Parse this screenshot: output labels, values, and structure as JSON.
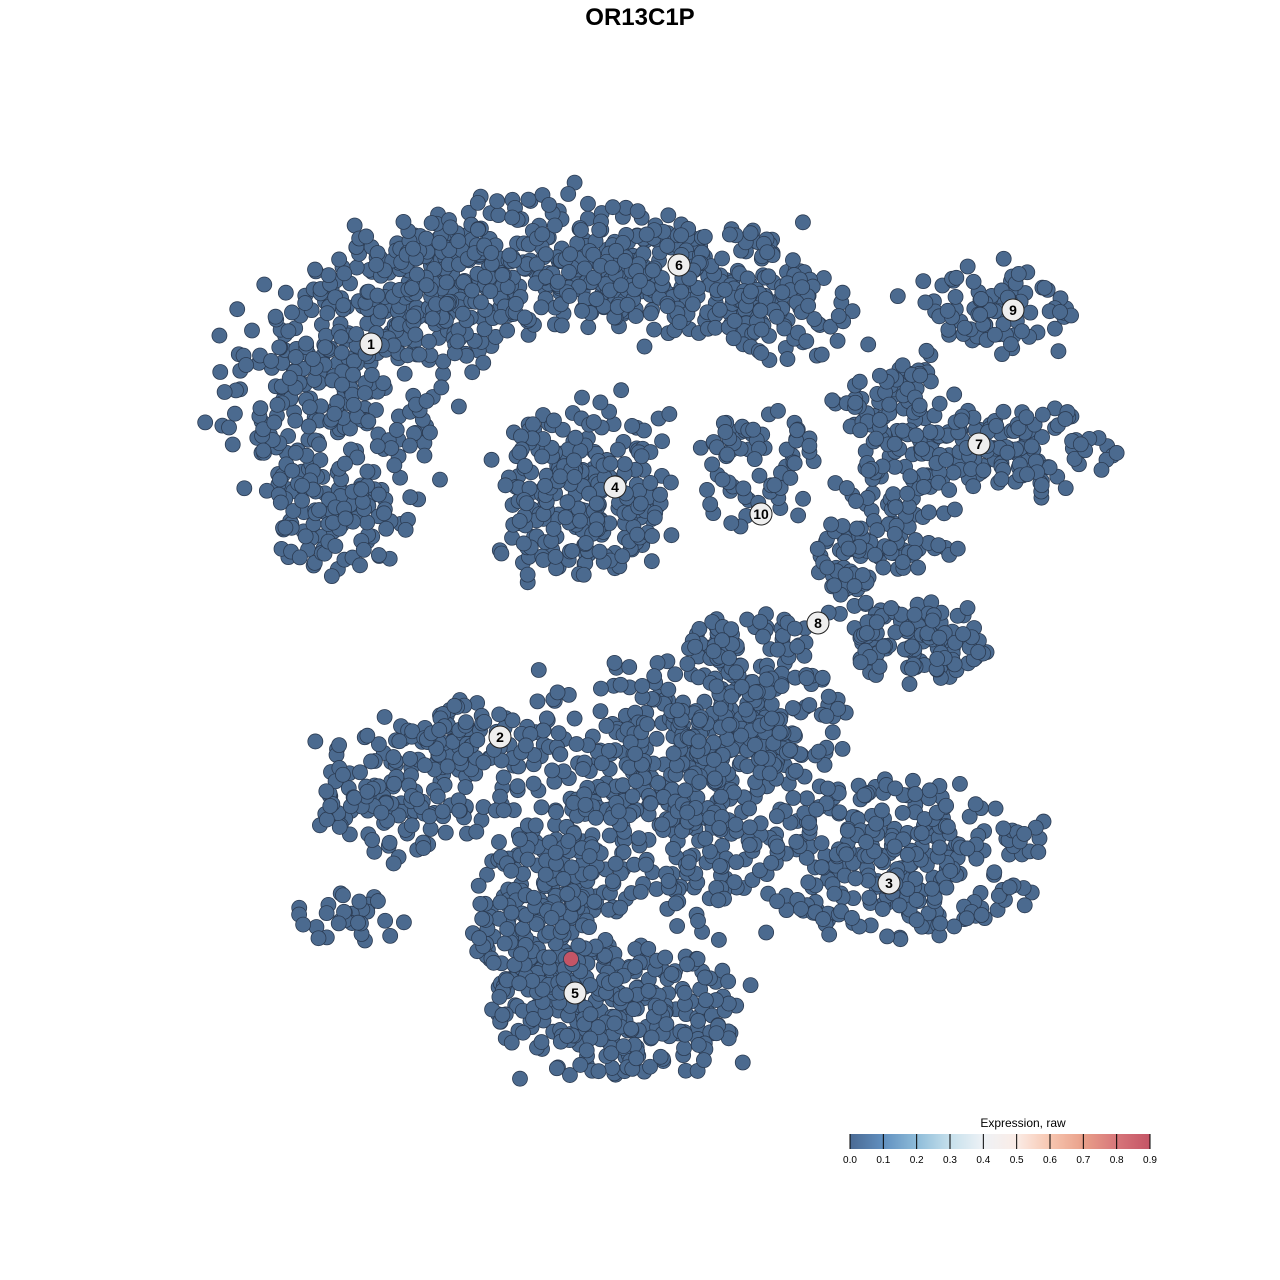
{
  "chart_data": {
    "type": "scatter",
    "title": "OR13C1P",
    "xlabel": "",
    "ylabel": "",
    "grid": false,
    "axes_visible": false,
    "point_color_default": "#4b6a8f",
    "point_stroke": "#2b3b52",
    "clusters": [
      {
        "label": "1",
        "label_pos": [
          -26.9,
          29.6
        ],
        "blobs": [
          [
            -31,
            24,
            10,
            10,
            260
          ],
          [
            -22,
            34,
            9,
            6,
            200
          ],
          [
            -30,
            12,
            6,
            5,
            90
          ]
        ]
      },
      {
        "label": "2",
        "label_pos": [
          -14.0,
          -9.7
        ],
        "blobs": [
          [
            -24,
            -15,
            7,
            6,
            150
          ],
          [
            -18,
            -9,
            5,
            3,
            60
          ],
          [
            -29,
            -28,
            5,
            2.5,
            30
          ]
        ]
      },
      {
        "label": "3",
        "label_pos": [
          24.9,
          -24.3
        ],
        "blobs": [
          [
            26,
            -22,
            12,
            7,
            300
          ]
        ]
      },
      {
        "label": "4",
        "label_pos": [
          -2.5,
          15.3
        ],
        "blobs": [
          [
            -6,
            15,
            7.5,
            8,
            260
          ]
        ]
      },
      {
        "label": "5",
        "label_pos": [
          -6.5,
          -35.3
        ],
        "blobs": [
          [
            -2,
            -37,
            11,
            6,
            300
          ],
          [
            -10,
            -28,
            6,
            7,
            160
          ]
        ]
      },
      {
        "label": "6",
        "label_pos": [
          3.9,
          37.5
        ],
        "blobs": [
          [
            -10,
            38,
            13,
            6,
            300
          ],
          [
            6,
            36,
            10,
            5,
            200
          ],
          [
            15,
            32,
            5,
            4,
            70
          ]
        ]
      },
      {
        "label": "7",
        "label_pos": [
          33.9,
          19.6
        ],
        "blobs": [
          [
            36,
            19,
            11,
            4,
            160
          ],
          [
            25,
            24,
            5,
            4,
            70
          ]
        ]
      },
      {
        "label": "8",
        "label_pos": [
          17.8,
          1.7
        ],
        "blobs": [
          [
            26,
            12,
            6,
            5,
            80
          ],
          [
            21,
            7,
            3,
            4,
            50
          ],
          [
            28,
            0,
            6,
            3.5,
            110
          ],
          [
            11,
            0,
            6,
            2.5,
            60
          ]
        ]
      },
      {
        "label": "9",
        "label_pos": [
          37.3,
          33.0
        ],
        "blobs": [
          [
            35,
            33,
            7,
            4,
            90
          ]
        ]
      },
      {
        "label": "10",
        "label_pos": [
          12.1,
          12.6
        ],
        "blobs": [
          [
            12,
            17,
            6,
            5,
            70
          ]
        ]
      },
      {
        "label": "",
        "label_pos": null,
        "blobs": [
          [
            1,
            -15,
            14,
            11,
            500
          ],
          [
            12,
            -8,
            8,
            5,
            160
          ]
        ]
      }
    ],
    "highlighted_points": [
      {
        "x": -6.9,
        "y": -31.9,
        "value": 0.9
      }
    ],
    "default_value": 0.0,
    "colorbar": {
      "title": "Expression, raw",
      "range": [
        0.0,
        0.9
      ],
      "ticks": [
        "0.0",
        "0.1",
        "0.2",
        "0.3",
        "0.4",
        "0.5",
        "0.6",
        "0.7",
        "0.8",
        "0.9"
      ],
      "colors": [
        "#4a6a94",
        "#6190c0",
        "#8ebcd9",
        "#c6e0ec",
        "#eef2f6",
        "#fbece6",
        "#f7c6b0",
        "#e9a08a",
        "#d7767a",
        "#c45566"
      ]
    }
  }
}
